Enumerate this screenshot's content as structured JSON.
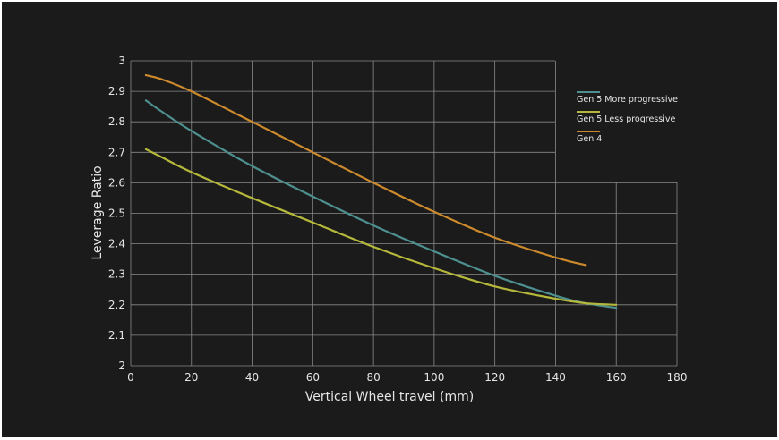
{
  "chart_data": {
    "type": "line",
    "title": "",
    "xlabel": "Vertical Wheel travel (mm)",
    "ylabel": "Leverage Ratio",
    "xlim": [
      0,
      180
    ],
    "ylim": [
      2,
      3
    ],
    "x_ticks": [
      0,
      20,
      40,
      60,
      80,
      100,
      120,
      140,
      160,
      180
    ],
    "y_ticks": [
      2,
      2.1,
      2.2,
      2.3,
      2.4,
      2.5,
      2.6,
      2.7,
      2.8,
      2.9,
      3
    ],
    "x_tick_labels": [
      "0",
      "20",
      "40",
      "60",
      "80",
      "100",
      "120",
      "140",
      "160",
      "180"
    ],
    "y_tick_labels": [
      "2",
      "2.1",
      "2.2",
      "2.3",
      "2.4",
      "2.5",
      "2.6",
      "2.7",
      "2.8",
      "2.9",
      "3"
    ],
    "grid": true,
    "legend_position": "top-right",
    "series": [
      {
        "name": "Gen 5 More progressive",
        "color": "#4e8f8f",
        "x": [
          5,
          10,
          20,
          40,
          60,
          80,
          100,
          120,
          140,
          150,
          160
        ],
        "y": [
          2.87,
          2.835,
          2.77,
          2.655,
          2.555,
          2.46,
          2.375,
          2.295,
          2.23,
          2.205,
          2.19
        ]
      },
      {
        "name": "Gen 5 Less progressive",
        "color": "#b5b83a",
        "x": [
          5,
          10,
          20,
          40,
          60,
          80,
          100,
          120,
          140,
          150,
          160
        ],
        "y": [
          2.71,
          2.685,
          2.635,
          2.55,
          2.47,
          2.39,
          2.32,
          2.26,
          2.22,
          2.205,
          2.2
        ]
      },
      {
        "name": "Gen 4",
        "color": "#cc8a2c",
        "x": [
          5,
          10,
          20,
          40,
          60,
          80,
          100,
          120,
          140,
          150
        ],
        "y": [
          2.953,
          2.94,
          2.9,
          2.8,
          2.7,
          2.6,
          2.505,
          2.42,
          2.355,
          2.33
        ]
      }
    ]
  }
}
